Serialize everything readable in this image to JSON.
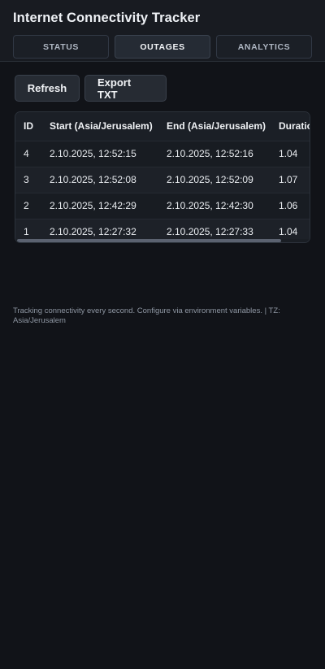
{
  "header": {
    "title": "Internet Connectivity Tracker",
    "tabs": [
      {
        "label": "STATUS",
        "active": false
      },
      {
        "label": "OUTAGES",
        "active": true
      },
      {
        "label": "ANALYTICS",
        "active": false
      }
    ]
  },
  "toolbar": {
    "refresh_label": "Refresh",
    "export_label": "Export TXT"
  },
  "table": {
    "columns": [
      "ID",
      "Start (Asia/Jerusalem)",
      "End (Asia/Jerusalem)",
      "Duration"
    ],
    "rows": [
      {
        "id": "4",
        "start": "2.10.2025, 12:52:15",
        "end": "2.10.2025, 12:52:16",
        "duration": "1.04"
      },
      {
        "id": "3",
        "start": "2.10.2025, 12:52:08",
        "end": "2.10.2025, 12:52:09",
        "duration": "1.07"
      },
      {
        "id": "2",
        "start": "2.10.2025, 12:42:29",
        "end": "2.10.2025, 12:42:30",
        "duration": "1.06"
      },
      {
        "id": "1",
        "start": "2.10.2025, 12:27:32",
        "end": "2.10.2025, 12:27:33",
        "duration": "1.04"
      }
    ]
  },
  "footer": {
    "text": "Tracking connectivity every second. Configure via environment variables. | TZ: Asia/Jerusalem"
  },
  "colors": {
    "background": "#111318",
    "header_background": "#181b21",
    "accent_text": "#eef1f5"
  }
}
